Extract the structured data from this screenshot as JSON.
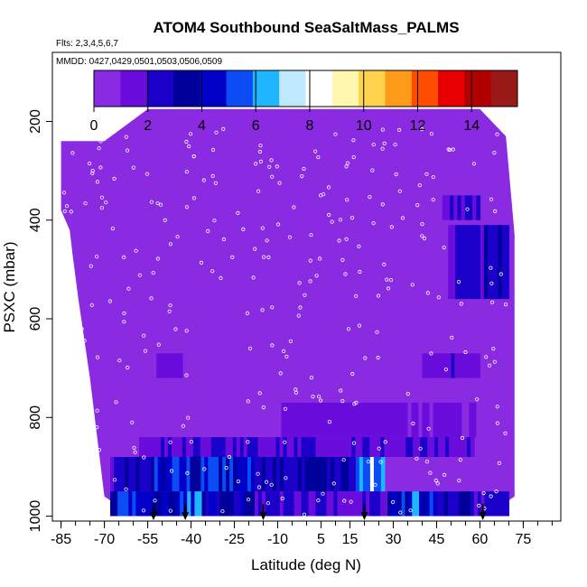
{
  "chart_data": {
    "type": "heatmap",
    "title": "ATOM4 Southbound SeaSaltMass_PALMS",
    "subtitle_flights": "Flts: 2,3,4,5,6,7",
    "subtitle_dates": "MMDD: 0427,0429,0501,0503,0506,0509",
    "xlabel": "Latitude (deg N)",
    "ylabel": "PSXC (mbar)",
    "xlim": [
      -88,
      88
    ],
    "ylim": [
      1010,
      60
    ],
    "x_ticks": [
      -85,
      -70,
      -55,
      -40,
      -25,
      -10,
      5,
      15,
      30,
      45,
      60,
      75
    ],
    "x_tick_labels": [
      "-85",
      "-70",
      "-55",
      "-40",
      "-25",
      "-10",
      "5",
      "15",
      "30",
      "45",
      "60",
      "75"
    ],
    "y_ticks": [
      200,
      400,
      600,
      800,
      1000
    ],
    "y_tick_labels": [
      "200",
      "400",
      "600",
      "800",
      "1000"
    ],
    "colorbar": {
      "min": 0,
      "max": 15.7,
      "ticks": [
        0,
        2,
        4,
        6,
        8,
        10,
        12,
        14
      ],
      "tick_labels": [
        "0",
        "2",
        "4",
        "6",
        "8",
        "10",
        "12",
        "14"
      ],
      "colors": [
        "#8a2be2",
        "#6a0ddc",
        "#1a00c8",
        "#00009a",
        "#0000c8",
        "#0b4cf5",
        "#1fb6ff",
        "#bfe9ff",
        "#ffffff",
        "#fff7b0",
        "#ffd34d",
        "#ff9a1a",
        "#ff4d00",
        "#e60000",
        "#b20000",
        "#9a1a1a"
      ]
    },
    "background_value": 0.5,
    "enhanced_regions": [
      {
        "lat": [
          -52,
          -43
        ],
        "p": [
          670,
          720
        ],
        "value": 1.5
      },
      {
        "lat": [
          47,
          60
        ],
        "p": [
          350,
          400
        ],
        "value": 2.2
      },
      {
        "lat": [
          49,
          70
        ],
        "p": [
          410,
          560
        ],
        "value": 2.6
      },
      {
        "lat": [
          40,
          60
        ],
        "p": [
          670,
          720
        ],
        "value": 1.6
      },
      {
        "lat": [
          -10,
          60
        ],
        "p": [
          770,
          840
        ],
        "value": 1.2
      },
      {
        "lat": [
          -58,
          58
        ],
        "p": [
          840,
          880
        ],
        "value": 1.9
      },
      {
        "lat": [
          -68,
          -54
        ],
        "p": [
          880,
          950
        ],
        "value": 2.6
      },
      {
        "lat": [
          -54,
          -18
        ],
        "p": [
          880,
          950
        ],
        "value": 4.3
      },
      {
        "lat": [
          -18,
          17
        ],
        "p": [
          880,
          950
        ],
        "value": 2.7
      },
      {
        "lat": [
          17,
          27
        ],
        "p": [
          880,
          950
        ],
        "value": 6.8
      },
      {
        "lat": [
          -68,
          -35
        ],
        "p": [
          950,
          1000
        ],
        "value": 4.8
      },
      {
        "lat": [
          -35,
          -18
        ],
        "p": [
          950,
          1000
        ],
        "value": 3.6
      },
      {
        "lat": [
          -18,
          28
        ],
        "p": [
          950,
          1000
        ],
        "value": 2.0
      },
      {
        "lat": [
          28,
          45
        ],
        "p": [
          950,
          1000
        ],
        "value": 5.0
      },
      {
        "lat": [
          45,
          58
        ],
        "p": [
          950,
          1000
        ],
        "value": 2.8
      },
      {
        "lat": [
          58,
          70
        ],
        "p": [
          950,
          1000
        ],
        "value": 2.2
      }
    ],
    "arrow_latitudes": [
      -53,
      -42,
      -15,
      20,
      61
    ],
    "grid": false,
    "legend": "colorbar-top"
  }
}
